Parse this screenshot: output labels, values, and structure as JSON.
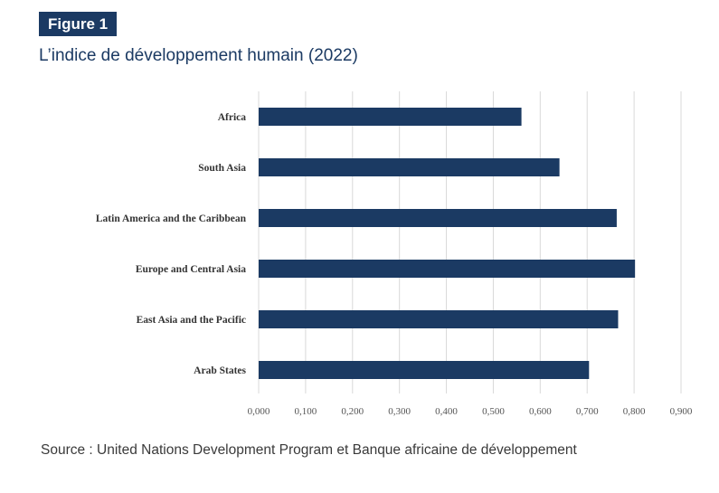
{
  "figure_badge": "Figure 1",
  "title": "L’indice de développement humain (2022)",
  "source": "Source : United Nations Development Program et Banque africaine de développement",
  "colors": {
    "bar": "#1b3a63",
    "grid": "#d9d9d9",
    "accent": "#1b3a63"
  },
  "chart_data": {
    "type": "bar",
    "orientation": "horizontal",
    "categories": [
      "Africa",
      "South Asia",
      "Latin America and the Caribbean",
      "Europe and Central Asia",
      "East Asia and the Pacific",
      "Arab States"
    ],
    "values": [
      0.56,
      0.641,
      0.763,
      0.802,
      0.766,
      0.704
    ],
    "xlim": [
      0,
      0.9
    ],
    "xticks": [
      "0,000",
      "0,100",
      "0,200",
      "0,300",
      "0,400",
      "0,500",
      "0,600",
      "0,700",
      "0,800",
      "0,900"
    ],
    "grid": true,
    "legend": "none"
  }
}
